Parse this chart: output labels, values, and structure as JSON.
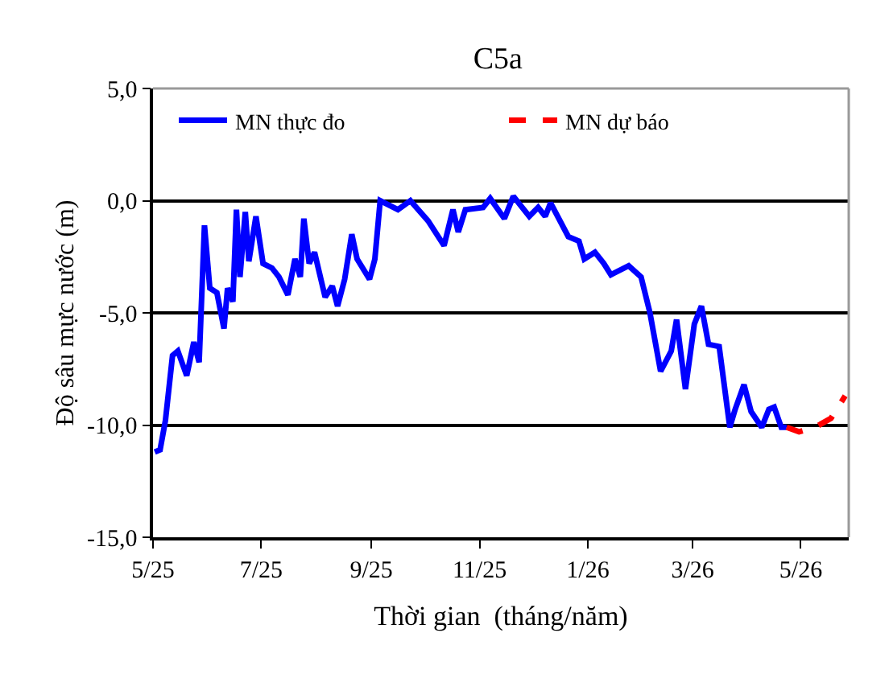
{
  "chart_data": {
    "type": "line",
    "title": "C5a",
    "xlabel": "Thời gian  (tháng/năm)",
    "ylabel": "Độ sâu mực nước (m)",
    "xlim": [
      "2025-05-01",
      "2026-05-28"
    ],
    "xticks": [
      {
        "value": "2025-05-01",
        "label": "5/25"
      },
      {
        "value": "2025-07-01",
        "label": "7/25"
      },
      {
        "value": "2025-09-01",
        "label": "9/25"
      },
      {
        "value": "2025-11-01",
        "label": "11/25"
      },
      {
        "value": "2026-01-01",
        "label": "1/26"
      },
      {
        "value": "2026-03-01",
        "label": "3/26"
      },
      {
        "value": "2026-05-01",
        "label": "5/26"
      }
    ],
    "ylim": [
      -15,
      5
    ],
    "yticks": [
      {
        "value": -15,
        "label": "-15,0"
      },
      {
        "value": -10,
        "label": "-10,0"
      },
      {
        "value": -5,
        "label": "-5,0"
      },
      {
        "value": 0,
        "label": "0,0"
      },
      {
        "value": 5,
        "label": "5,0"
      }
    ],
    "grid": "y",
    "legend": "top",
    "marker": "none",
    "series": [
      {
        "name": "MN thực đo",
        "color": "#0000ff",
        "line_style": "solid",
        "x": [
          "2025-05-02",
          "2025-05-05",
          "2025-05-08",
          "2025-05-12",
          "2025-05-15",
          "2025-05-20",
          "2025-05-24",
          "2025-05-27",
          "2025-05-30",
          "2025-06-02",
          "2025-06-06",
          "2025-06-10",
          "2025-06-12",
          "2025-06-15",
          "2025-06-17",
          "2025-06-19",
          "2025-06-22",
          "2025-06-24",
          "2025-06-28",
          "2025-07-02",
          "2025-07-07",
          "2025-07-11",
          "2025-07-16",
          "2025-07-20",
          "2025-07-23",
          "2025-07-25",
          "2025-07-28",
          "2025-07-31",
          "2025-08-06",
          "2025-08-10",
          "2025-08-13",
          "2025-08-17",
          "2025-08-21",
          "2025-08-24",
          "2025-08-31",
          "2025-09-03",
          "2025-09-06",
          "2025-09-16",
          "2025-09-23",
          "2025-10-03",
          "2025-10-12",
          "2025-10-17",
          "2025-10-20",
          "2025-10-24",
          "2025-11-03",
          "2025-11-07",
          "2025-11-15",
          "2025-11-20",
          "2025-11-29",
          "2025-12-04",
          "2025-12-08",
          "2025-12-11",
          "2025-12-21",
          "2025-12-27",
          "2025-12-30",
          "2026-01-05",
          "2026-01-10",
          "2026-01-14",
          "2026-01-24",
          "2026-01-31",
          "2026-02-05",
          "2026-02-11",
          "2026-02-17",
          "2026-02-20",
          "2026-02-25",
          "2026-03-02",
          "2026-03-06",
          "2026-03-10",
          "2026-03-16",
          "2026-03-22",
          "2026-03-25",
          "2026-03-30",
          "2026-04-03",
          "2026-04-09",
          "2026-04-13",
          "2026-04-16",
          "2026-04-20",
          "2026-04-23"
        ],
        "values": [
          -11.2,
          -11.1,
          -9.8,
          -6.9,
          -6.7,
          -7.8,
          -6.3,
          -7.2,
          -1.1,
          -3.9,
          -4.1,
          -5.7,
          -3.9,
          -4.5,
          -0.4,
          -3.4,
          -0.5,
          -2.7,
          -0.7,
          -2.8,
          -3.0,
          -3.4,
          -4.2,
          -2.6,
          -3.4,
          -0.8,
          -2.8,
          -2.3,
          -4.3,
          -3.8,
          -4.7,
          -3.5,
          -1.5,
          -2.6,
          -3.5,
          -2.6,
          0.0,
          -0.4,
          0.0,
          -0.9,
          -2.0,
          -0.4,
          -1.4,
          -0.4,
          -0.3,
          0.1,
          -0.8,
          0.2,
          -0.7,
          -0.3,
          -0.7,
          -0.1,
          -1.6,
          -1.8,
          -2.6,
          -2.3,
          -2.8,
          -3.3,
          -2.9,
          -3.4,
          -5.0,
          -7.6,
          -6.7,
          -5.3,
          -8.4,
          -5.5,
          -4.7,
          -6.4,
          -6.5,
          -10.1,
          -9.3,
          -8.2,
          -9.4,
          -10.1,
          -9.3,
          -9.2,
          -10.1,
          -10.1
        ]
      },
      {
        "name": "MN dự báo",
        "color": "#ff0000",
        "line_style": "dashed",
        "x": [
          "2026-04-23",
          "2026-04-30",
          "2026-05-09",
          "2026-05-18",
          "2026-05-26"
        ],
        "values": [
          -10.1,
          -10.3,
          -10.1,
          -9.7,
          -8.7
        ]
      }
    ]
  }
}
